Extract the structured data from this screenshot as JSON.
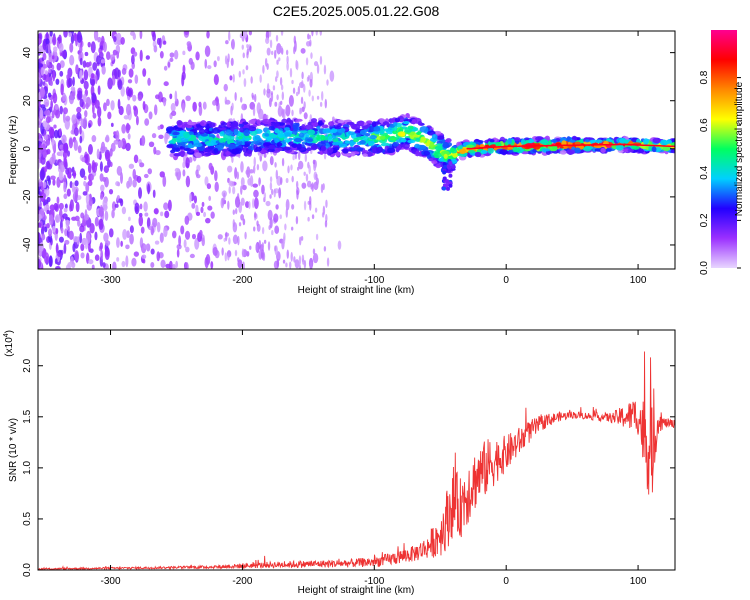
{
  "title": "C2E5.2025.005.01.22.G08",
  "chart_data": [
    {
      "type": "heatmap",
      "xlabel": "Height of straight line (km)",
      "ylabel": "Frequency (Hz)",
      "xlim": [
        -355,
        128
      ],
      "ylim": [
        -50,
        49
      ],
      "x_ticks": [
        -300,
        -200,
        -100,
        0,
        100
      ],
      "y_ticks": [
        -40,
        -20,
        0,
        20,
        40
      ],
      "ridge": [
        {
          "x": -220,
          "y": 4
        },
        {
          "x": -180,
          "y": 5
        },
        {
          "x": -140,
          "y": 5
        },
        {
          "x": -110,
          "y": 4
        },
        {
          "x": -90,
          "y": 5
        },
        {
          "x": -75,
          "y": 7
        },
        {
          "x": -60,
          "y": 3
        },
        {
          "x": -45,
          "y": -3
        },
        {
          "x": -30,
          "y": 0
        },
        {
          "x": 0,
          "y": 1
        },
        {
          "x": 50,
          "y": 1.5
        },
        {
          "x": 90,
          "y": 1.8
        },
        {
          "x": 128,
          "y": 1
        }
      ],
      "colorbar": {
        "label": "Normalized spectral amplitude",
        "ticks": [
          "0.0",
          "0.2",
          "0.4",
          "0.6",
          "0.8"
        ],
        "tick_values": [
          0.0,
          0.2,
          0.4,
          0.6,
          0.8
        ],
        "range": [
          0,
          1
        ],
        "colors": [
          "#e8d6ff",
          "#9b30ff",
          "#2200ff",
          "#00d0ff",
          "#00ff60",
          "#ffff00",
          "#ff8800",
          "#ff0000",
          "#ff0090"
        ]
      }
    },
    {
      "type": "line",
      "xlabel": "Height of straight line (km)",
      "ylabel": "SNR (10 * v/v)",
      "multiplier": "(x10",
      "multiplier_exp": "4",
      "multiplier_close": ")",
      "xlim": [
        -355,
        128
      ],
      "ylim": [
        0,
        23500
      ],
      "x_ticks": [
        -300,
        -200,
        -100,
        0,
        100
      ],
      "y_ticks": [
        0,
        5000,
        10000,
        15000,
        20000
      ],
      "y_tick_labels": [
        "0.0",
        "0.5",
        "1.0",
        "1.5",
        "2.0"
      ],
      "series": [
        {
          "name": "SNR",
          "color": "#ee3333",
          "x": [
            -355,
            -320,
            -280,
            -250,
            -220,
            -200,
            -180,
            -160,
            -140,
            -120,
            -100,
            -90,
            -80,
            -70,
            -60,
            -50,
            -45,
            -40,
            -35,
            -30,
            -25,
            -20,
            -15,
            -10,
            -5,
            0,
            10,
            20,
            30,
            40,
            50,
            60,
            70,
            80,
            90,
            100,
            105,
            110,
            115,
            120,
            128
          ],
          "values": [
            100,
            150,
            200,
            250,
            300,
            400,
            500,
            550,
            600,
            650,
            800,
            1000,
            1300,
            1600,
            2200,
            3500,
            5000,
            6800,
            6000,
            7600,
            8600,
            9400,
            10000,
            10600,
            11000,
            11400,
            12600,
            13800,
            14600,
            15000,
            15200,
            15100,
            15000,
            14900,
            15000,
            15200,
            13000,
            11000,
            14500,
            14400,
            14300
          ],
          "noise_amp": [
            60,
            80,
            100,
            120,
            150,
            250,
            300,
            350,
            350,
            400,
            500,
            600,
            700,
            800,
            1100,
            2200,
            3000,
            3500,
            3000,
            3500,
            3000,
            3000,
            2800,
            2600,
            2000,
            1800,
            1400,
            1000,
            700,
            450,
            350,
            350,
            400,
            500,
            1200,
            2000,
            4000,
            5000,
            1200,
            500,
            400
          ]
        }
      ]
    }
  ]
}
